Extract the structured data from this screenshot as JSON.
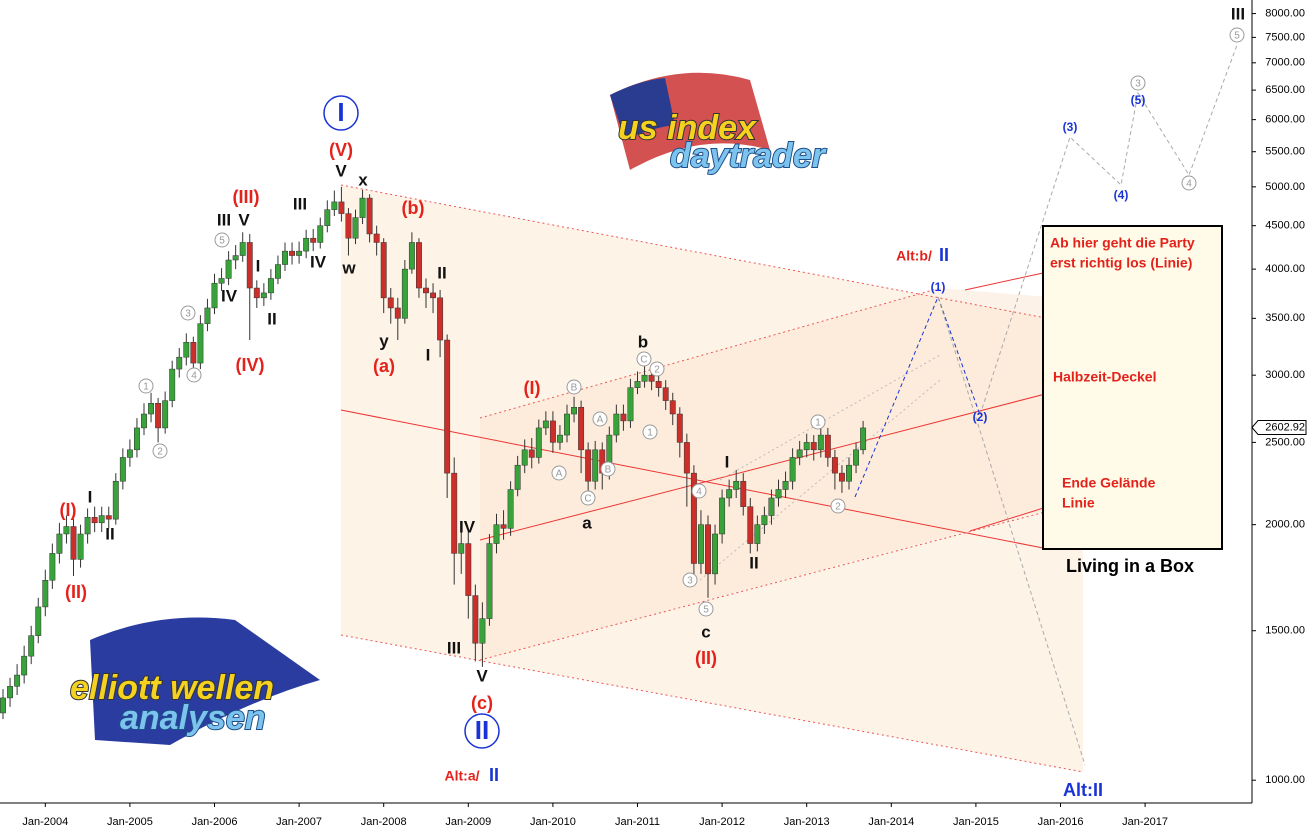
{
  "chart_data": {
    "type": "candlestick",
    "categories": [
      null,
      null,
      null,
      null,
      null,
      null,
      "Jan-2004",
      null,
      null,
      null,
      null,
      null,
      null,
      null,
      null,
      null,
      null,
      null,
      "Jan-2005",
      null,
      null,
      null,
      null,
      null,
      null,
      null,
      null,
      null,
      null,
      null,
      "Jan-2006",
      null,
      null,
      null,
      null,
      null,
      null,
      null,
      null,
      null,
      null,
      null,
      "Jan-2007",
      null,
      null,
      null,
      null,
      null,
      null,
      null,
      null,
      null,
      null,
      null,
      "Jan-2008",
      null,
      null,
      null,
      null,
      null,
      null,
      null,
      null,
      null,
      null,
      null,
      "Jan-2009",
      null,
      null,
      null,
      null,
      null,
      null,
      null,
      null,
      null,
      null,
      null,
      "Jan-2010",
      null,
      null,
      null,
      null,
      null,
      null,
      null,
      null,
      null,
      null,
      null,
      "Jan-2011",
      null,
      null,
      null,
      null,
      null,
      null,
      null,
      null,
      null,
      null,
      null,
      "Jan-2012",
      null,
      null,
      null,
      null,
      null,
      null,
      null,
      null,
      null,
      null,
      null,
      "Jan-2013",
      null,
      null,
      null,
      null,
      null,
      null,
      null,
      null,
      null,
      null,
      null,
      "Jan-2014",
      null,
      null,
      null,
      null,
      null,
      null,
      null,
      null,
      null,
      null,
      null,
      "Jan-2015",
      null,
      null,
      null,
      null,
      null,
      null,
      null,
      null,
      null,
      null,
      null,
      "Jan-2016",
      null,
      null,
      null,
      null,
      null,
      null,
      null,
      null,
      null,
      null,
      null,
      "Jan-2017",
      null,
      null,
      null,
      null,
      null,
      null,
      null,
      null,
      null,
      null,
      null,
      null
    ],
    "open": [
      1200,
      1250,
      1290,
      1330,
      1400,
      1480,
      1600,
      1720,
      1850,
      1950,
      1990,
      1820,
      1950,
      2040,
      2010,
      2050,
      2030,
      2250,
      2400,
      2450,
      2600,
      2700,
      2780,
      2600,
      2800,
      3050,
      3150,
      3280,
      3100,
      3450,
      3600,
      3850,
      3900,
      4100,
      4150,
      4300,
      3800,
      3700,
      3750,
      3900,
      4050,
      4200,
      4150,
      4200,
      4350,
      4300,
      4500,
      4700,
      4800,
      4650,
      4350,
      4600,
      4850,
      4400,
      4300,
      3700,
      3600,
      3500,
      4000,
      4300,
      3800,
      3750,
      3700,
      3300,
      2300,
      1850,
      1900,
      1650,
      1450,
      1550,
      1900,
      2000,
      1980,
      2200,
      2350,
      2450,
      2400,
      2600,
      2650,
      2500,
      2550,
      2700,
      2750,
      2450,
      2250,
      2450,
      2300,
      2550,
      2700,
      2650,
      2900,
      2950,
      3000,
      2950,
      2900,
      2800,
      2700,
      2500,
      2300,
      1800,
      2000,
      1750,
      1950,
      2150,
      2200,
      2250,
      2100,
      1900,
      2000,
      2050,
      2150,
      2200,
      2250,
      2400,
      2450,
      2500,
      2450,
      2550,
      2400,
      2300,
      2250,
      2350,
      2450,
      null,
      null,
      null,
      null,
      null,
      null,
      null,
      null,
      null,
      null,
      null,
      null,
      null,
      null,
      null,
      null,
      null,
      null,
      null,
      null,
      null,
      null,
      null,
      null,
      null,
      null,
      null,
      null,
      null,
      null,
      null,
      null,
      null,
      null,
      null,
      null,
      null,
      null,
      null,
      null,
      null,
      null,
      null,
      null,
      null,
      null,
      null,
      null,
      null,
      null,
      null,
      null
    ],
    "high": [
      1280,
      1320,
      1370,
      1440,
      1520,
      1640,
      1770,
      1900,
      2010,
      2050,
      2030,
      2000,
      2090,
      2100,
      2100,
      2100,
      2300,
      2460,
      2520,
      2670,
      2780,
      2860,
      2820,
      2870,
      3120,
      3230,
      3360,
      3330,
      3530,
      3690,
      3950,
      4010,
      4200,
      4270,
      4420,
      4400,
      3880,
      3850,
      4000,
      4150,
      4300,
      4300,
      4310,
      4450,
      4460,
      4600,
      4820,
      4950,
      5000,
      4720,
      4700,
      4960,
      4900,
      4500,
      4350,
      3800,
      3700,
      4100,
      4420,
      4350,
      3900,
      3850,
      3780,
      3350,
      2400,
      2000,
      1980,
      1700,
      1620,
      1950,
      2060,
      2080,
      2250,
      2410,
      2520,
      2530,
      2660,
      2720,
      2720,
      2620,
      2770,
      2830,
      2800,
      2500,
      2510,
      2500,
      2610,
      2770,
      2770,
      2970,
      3030,
      3080,
      3060,
      3020,
      2960,
      2860,
      2750,
      2560,
      2350,
      2080,
      2050,
      2000,
      2200,
      2260,
      2320,
      2300,
      2150,
      2050,
      2100,
      2200,
      2260,
      2310,
      2460,
      2510,
      2560,
      2550,
      2610,
      2600,
      2450,
      2350,
      2400,
      2500,
      2650,
      null,
      null,
      null,
      null,
      null,
      null,
      null,
      null,
      null,
      null,
      null,
      null,
      null,
      null,
      null,
      null,
      null,
      null,
      null,
      null,
      null,
      null,
      null,
      null,
      null,
      null,
      null,
      null,
      null,
      null,
      null,
      null,
      null,
      null,
      null,
      null,
      null,
      null,
      null,
      null,
      null,
      null,
      null,
      null,
      null,
      null,
      null,
      null,
      null,
      null,
      null,
      null
    ],
    "low": [
      1180,
      1220,
      1260,
      1300,
      1370,
      1450,
      1560,
      1680,
      1800,
      1900,
      1740,
      1780,
      1900,
      1960,
      1960,
      1980,
      2000,
      2200,
      2340,
      2400,
      2550,
      2640,
      2500,
      2560,
      2750,
      2980,
      3080,
      3000,
      3050,
      3380,
      3540,
      3770,
      3830,
      4000,
      4080,
      3300,
      3600,
      3620,
      3680,
      3840,
      3980,
      4050,
      4060,
      4120,
      4200,
      4230,
      4420,
      4620,
      4550,
      4150,
      4280,
      4520,
      4300,
      4150,
      3550,
      3450,
      3300,
      3450,
      3950,
      3700,
      3600,
      3550,
      3150,
      2150,
      1700,
      1750,
      1550,
      1380,
      1360,
      1520,
      1850,
      1920,
      1940,
      2160,
      2300,
      2330,
      2360,
      2550,
      2430,
      2450,
      2500,
      2640,
      2300,
      2180,
      2200,
      2200,
      2260,
      2500,
      2580,
      2600,
      2850,
      2900,
      2880,
      2830,
      2730,
      2620,
      2400,
      2100,
      1700,
      1750,
      1640,
      1700,
      1900,
      2100,
      2150,
      2050,
      1850,
      1860,
      1950,
      2000,
      2100,
      2150,
      2200,
      2350,
      2400,
      2380,
      2400,
      2340,
      2200,
      2180,
      2200,
      2300,
      2420,
      null,
      null,
      null,
      null,
      null,
      null,
      null,
      null,
      null,
      null,
      null,
      null,
      null,
      null,
      null,
      null,
      null,
      null,
      null,
      null,
      null,
      null,
      null,
      null,
      null,
      null,
      null,
      null,
      null,
      null,
      null,
      null,
      null,
      null,
      null,
      null,
      null,
      null,
      null,
      null,
      null,
      null,
      null,
      null,
      null,
      null,
      null,
      null,
      null,
      null,
      null,
      null
    ],
    "close": [
      1250,
      1290,
      1330,
      1400,
      1480,
      1600,
      1720,
      1850,
      1950,
      1990,
      1820,
      1950,
      2040,
      2010,
      2050,
      2030,
      2250,
      2400,
      2450,
      2600,
      2700,
      2780,
      2600,
      2800,
      3050,
      3150,
      3280,
      3100,
      3450,
      3600,
      3850,
      3900,
      4100,
      4150,
      4300,
      3800,
      3700,
      3750,
      3900,
      4050,
      4200,
      4150,
      4200,
      4350,
      4300,
      4500,
      4700,
      4800,
      4650,
      4350,
      4600,
      4850,
      4400,
      4300,
      3700,
      3600,
      3500,
      4000,
      4300,
      3800,
      3750,
      3700,
      3300,
      2300,
      1850,
      1900,
      1650,
      1450,
      1550,
      1900,
      2000,
      1980,
      2200,
      2350,
      2450,
      2400,
      2600,
      2650,
      2500,
      2550,
      2700,
      2750,
      2450,
      2250,
      2450,
      2300,
      2550,
      2700,
      2650,
      2900,
      2950,
      3000,
      2950,
      2900,
      2800,
      2700,
      2500,
      2300,
      1800,
      2000,
      1750,
      1950,
      2150,
      2200,
      2250,
      2100,
      1900,
      2000,
      2050,
      2150,
      2200,
      2250,
      2400,
      2450,
      2500,
      2450,
      2550,
      2400,
      2300,
      2250,
      2350,
      2450,
      2600,
      null,
      null,
      null,
      null,
      null,
      null,
      null,
      null,
      null,
      null,
      null,
      null,
      null,
      null,
      null,
      null,
      null,
      null,
      null,
      null,
      null,
      null,
      null,
      null,
      null,
      null,
      null,
      null,
      null,
      null,
      null,
      null,
      null,
      null,
      null,
      null,
      null,
      null,
      null,
      null,
      null,
      null,
      null,
      null,
      null,
      null,
      null,
      null,
      null,
      null,
      null,
      null
    ],
    "up_color": "#3aa23a",
    "down_color": "#cc2f2a",
    "log_scale": true,
    "ylim": [
      940,
      8300
    ],
    "yticks": [
      {
        "value": 1000,
        "label": "1000.00"
      },
      {
        "value": 1500,
        "label": "1500.00"
      },
      {
        "value": 2000,
        "label": "2000.00"
      },
      {
        "value": 2500,
        "label": "2500.00"
      },
      {
        "value": 3000,
        "label": "3000.00"
      },
      {
        "value": 3500,
        "label": "3500.00"
      },
      {
        "value": 4000,
        "label": "4000.00"
      },
      {
        "value": 4500,
        "label": "4500.00"
      },
      {
        "value": 5000,
        "label": "5000.00"
      },
      {
        "value": 5500,
        "label": "5500.00"
      },
      {
        "value": 6000,
        "label": "6000.00"
      },
      {
        "value": 6500,
        "label": "6500.00"
      },
      {
        "value": 7000,
        "label": "7000.00"
      },
      {
        "value": 7500,
        "label": "7500.00"
      },
      {
        "value": 8000,
        "label": "8000.00"
      }
    ],
    "last_price": 2602.92,
    "annotations": [
      "I",
      "(V)",
      "V",
      "x",
      "w",
      "(III)",
      "III",
      "V",
      "5",
      "I",
      "IV",
      "II",
      "(IV)",
      "III",
      "IV",
      "3",
      "4",
      "1",
      "2",
      "(I)",
      "I",
      "II",
      "(II)",
      "(b)",
      "II",
      "y",
      "(a)",
      "I",
      "IV",
      "III",
      "V",
      "(c)",
      "II",
      "Alt:a/",
      "II",
      "(I)",
      "b",
      "C",
      "2",
      "B",
      "A",
      "B",
      "1",
      "A",
      "C",
      "a",
      "4",
      "I",
      "3",
      "5",
      "c",
      "(II)",
      "II",
      "1",
      "2",
      "Alt:b/",
      "II",
      "(1)",
      "(2)",
      "(3)",
      "(4)",
      "(5)",
      "3",
      "4",
      "5",
      "III",
      "Alt:II"
    ],
    "notes": [
      "Ab hier geht die Party",
      "erst richtig los (Linie)",
      "Halbzeit-Deckel",
      "Ende Gelände",
      "Linie",
      "Living in a Box"
    ]
  },
  "logos": {
    "top": [
      "us index",
      "daytrader"
    ],
    "bottom": [
      "elliott wellen",
      "analysen"
    ]
  }
}
